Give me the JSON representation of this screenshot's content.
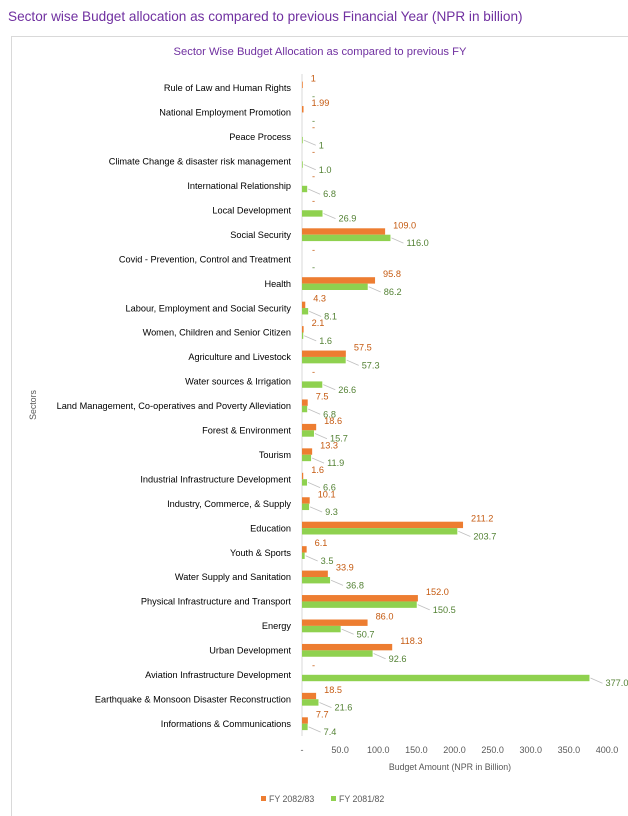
{
  "page_title": "Sector wise Budget allocation as compared to previous Financial Year (NPR in billion)",
  "chart_data": {
    "type": "bar",
    "orientation": "horizontal",
    "title": "Sector Wise Budget Allocation as compared to previous FY",
    "xlabel": "Budget Amount (NPR in Billion)",
    "ylabel": "Sectors",
    "xlim": [
      0,
      400
    ],
    "x_ticks": [
      "-",
      "50.0",
      "100.0",
      "150.0",
      "200.0",
      "250.0",
      "300.0",
      "350.0",
      "400.0"
    ],
    "legend_position": "bottom",
    "grid": false,
    "colors": {
      "fy_2082_83": "#ed7d31",
      "fy_2081_82": "#8fd14f",
      "label_2082_83": "#c55a11",
      "label_2081_82": "#548235"
    },
    "categories": [
      "Rule of Law and Human Rights",
      "National Employment Promotion",
      "Peace Process",
      "Climate Change & disaster risk management",
      "International Relationship",
      "Local Development",
      "Social Security",
      "Covid - Prevention, Control and Treatment",
      "Health",
      "Labour, Employment and Social Security",
      "Women, Children and Senior Citizen",
      "Agriculture and Livestock",
      "Water sources & Irrigation",
      "Land Management, Co-operatives and Poverty Alleviation",
      "Forest & Environment",
      "Tourism",
      "Industrial Infrastructure Development",
      "Industry, Commerce, & Supply",
      "Education",
      "Youth & Sports",
      "Water Supply and Sanitation",
      "Physical Infrastructure and Transport",
      "Energy",
      "Urban Development",
      "Aviation Infrastructure Development",
      "Earthquake & Monsoon Disaster Reconstruction",
      "Informations & Communications"
    ],
    "series": [
      {
        "name": "FY 2082/83",
        "values": [
          1,
          1.99,
          0,
          0,
          0,
          0,
          109.0,
          0,
          95.8,
          4.3,
          2.1,
          57.5,
          0,
          7.5,
          18.6,
          13.3,
          1.6,
          10.1,
          211.2,
          6.1,
          33.9,
          152.0,
          86.0,
          118.3,
          0,
          18.5,
          7.7
        ],
        "labels": [
          "1",
          "1.99",
          "-",
          "-",
          "-",
          "-",
          "109.0",
          "-",
          "95.8",
          "4.3",
          "2.1",
          "57.5",
          "-",
          "7.5",
          "18.6",
          "13.3",
          "1.6",
          "10.1",
          "211.2",
          "6.1",
          "33.9",
          "152.0",
          "86.0",
          "118.3",
          "-",
          "18.5",
          "7.7"
        ]
      },
      {
        "name": "FY 2081/82",
        "values": [
          0,
          0,
          1,
          1.0,
          6.8,
          26.9,
          116.0,
          0,
          86.2,
          8.1,
          1.6,
          57.3,
          26.6,
          6.8,
          15.7,
          11.9,
          6.6,
          9.3,
          203.7,
          3.5,
          36.8,
          150.5,
          50.7,
          92.6,
          377.0,
          21.6,
          7.4
        ],
        "labels": [
          "-",
          "-",
          "1",
          "1.0",
          "6.8",
          "26.9",
          "116.0",
          "-",
          "86.2",
          "8.1",
          "1.6",
          "57.3",
          "26.6",
          "6.8",
          "15.7",
          "11.9",
          "6.6",
          "9.3",
          "203.7",
          "3.5",
          "36.8",
          "150.5",
          "50.7",
          "92.6",
          "377.0",
          "21.6",
          "7.4"
        ]
      }
    ]
  }
}
